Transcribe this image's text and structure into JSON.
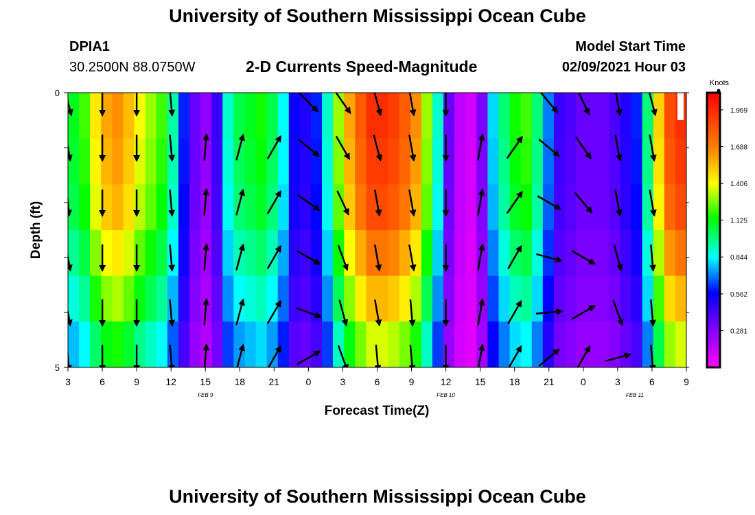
{
  "header": {
    "title": "University of Southern Mississippi Ocean Cube",
    "station_id": "DPIA1",
    "station_coords": "30.2500N 88.0750W",
    "chart_title": "2-D Currents Speed-Magnitude",
    "model_start_label": "Model Start Time",
    "model_start_value": "02/09/2021 Hour 03"
  },
  "footer": {
    "title": "University of Southern Mississippi Ocean Cube"
  },
  "colors": {
    "arrow": "#000000",
    "magenta_low": "#ff00ff",
    "red_high": "#ff0000"
  },
  "chart_data": {
    "type": "heatmap",
    "title": "2-D Currents Speed-Magnitude",
    "xlabel": "Forecast Time(Z)",
    "ylabel": "Depth (ft)",
    "y_ticks": [
      "0",
      "5"
    ],
    "ylim": [
      0,
      5
    ],
    "x_tick_labels": [
      "3",
      "6",
      "9",
      "12",
      "15",
      "18",
      "21",
      "0",
      "3",
      "6",
      "9",
      "12",
      "15",
      "18",
      "21",
      "0",
      "3",
      "6",
      "9"
    ],
    "date_labels": [
      {
        "label": "FEB  9",
        "at_index": 4
      },
      {
        "label": "FEB  10",
        "at_index": 11
      },
      {
        "label": "FEB  11",
        "at_index": 16.5
      }
    ],
    "colorbar": {
      "unit": "Knots",
      "ticks": [
        "1.969",
        "1.688",
        "1.406",
        "1.125",
        "0.844",
        "0.562",
        "0.281"
      ],
      "tick_values": [
        1.969,
        1.688,
        1.406,
        1.125,
        0.844,
        0.562,
        0.281
      ],
      "range": [
        0.0,
        2.1
      ]
    },
    "speed_profile": [
      1.1,
      1.2,
      1.45,
      1.6,
      1.65,
      1.55,
      1.4,
      1.3,
      1.2,
      0.95,
      0.6,
      0.35,
      0.25,
      0.45,
      0.9,
      1.05,
      1.1,
      1.15,
      1.05,
      0.85,
      0.55,
      0.5,
      0.6,
      0.9,
      1.3,
      1.6,
      1.8,
      1.95,
      1.95,
      1.9,
      1.8,
      1.65,
      1.3,
      0.9,
      0.35,
      0.15,
      0.1,
      0.3,
      0.8,
      1.0,
      1.15,
      1.2,
      1.0,
      0.7,
      0.45,
      0.4,
      0.35,
      0.35,
      0.35,
      0.4,
      0.5,
      0.6,
      1.0,
      1.5,
      1.85,
      1.95
    ],
    "depth_factors": [
      1.0,
      0.98,
      0.95,
      0.88,
      0.8,
      0.7
    ],
    "arrows": {
      "rows": 5,
      "columns": [
        {
          "dirs": [
            170,
            175,
            170,
            170,
            175
          ],
          "top_dir": 165
        },
        {
          "dirs": [
            180,
            180,
            180,
            180,
            180
          ],
          "top_dir": 180
        },
        {
          "dirs": [
            180,
            180,
            180,
            180,
            180
          ],
          "top_dir": 180
        },
        {
          "dirs": [
            175,
            175,
            175,
            175,
            175
          ],
          "top_dir": 175
        },
        {
          "dirs": [
            5,
            5,
            5,
            5,
            5
          ],
          "top_dir": null
        },
        {
          "dirs": [
            15,
            15,
            15,
            15,
            15
          ],
          "top_dir": null
        },
        {
          "dirs": [
            30,
            30,
            30,
            30,
            30
          ],
          "top_dir": null
        },
        {
          "dirs": [
            130,
            125,
            120,
            110,
            60
          ],
          "top_dir": 135
        },
        {
          "dirs": [
            150,
            155,
            160,
            165,
            160
          ],
          "top_dir": 145
        },
        {
          "dirs": [
            165,
            170,
            170,
            170,
            175
          ],
          "top_dir": 165
        },
        {
          "dirs": [
            170,
            170,
            170,
            175,
            175
          ],
          "top_dir": 170
        },
        {
          "dirs": [
            180,
            180,
            180,
            180,
            180
          ],
          "top_dir": 180
        },
        {
          "dirs": [
            10,
            10,
            10,
            10,
            10
          ],
          "top_dir": null
        },
        {
          "dirs": [
            35,
            35,
            30,
            30,
            30
          ],
          "top_dir": null
        },
        {
          "dirs": [
            130,
            120,
            105,
            85,
            50
          ],
          "top_dir": 140
        },
        {
          "dirs": [
            145,
            140,
            120,
            60,
            30
          ],
          "top_dir": 155
        },
        {
          "dirs": [
            170,
            170,
            165,
            160,
            75
          ],
          "top_dir": 170
        },
        {
          "dirs": [
            170,
            170,
            175,
            175,
            175
          ],
          "top_dir": 165
        }
      ]
    }
  }
}
